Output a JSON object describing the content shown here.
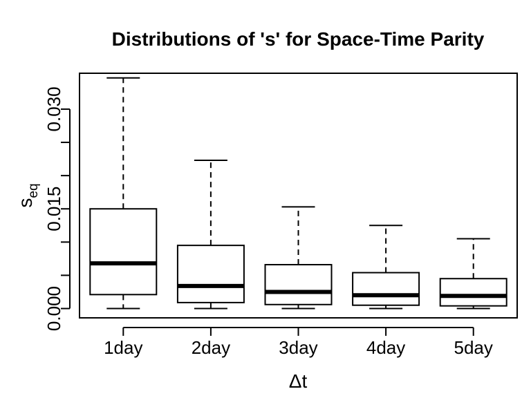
{
  "chart_data": {
    "type": "boxplot",
    "title": "Distributions of 's' for Space-Time Parity",
    "xlabel": "Δt",
    "ylabel_base": "s",
    "ylabel_sub": "eq",
    "categories": [
      "1day",
      "2day",
      "3day",
      "4day",
      "5day"
    ],
    "yticks": [
      "0.000",
      "0.015",
      "0.030"
    ],
    "ytick_values": [
      0.0,
      0.015,
      0.03
    ],
    "ylim": [
      -0.0014,
      0.0354
    ],
    "boxes": [
      {
        "category": "1day",
        "min": 0.0,
        "q1": 0.0021,
        "median": 0.0068,
        "q3": 0.015,
        "max": 0.0347
      },
      {
        "category": "2day",
        "min": 0.0,
        "q1": 0.0009,
        "median": 0.0034,
        "q3": 0.0095,
        "max": 0.0223
      },
      {
        "category": "3day",
        "min": 0.0,
        "q1": 0.0006,
        "median": 0.0025,
        "q3": 0.0066,
        "max": 0.0153
      },
      {
        "category": "4day",
        "min": 0.0,
        "q1": 0.0005,
        "median": 0.002,
        "q3": 0.0054,
        "max": 0.0125
      },
      {
        "category": "5day",
        "min": 0.0,
        "q1": 0.0004,
        "median": 0.0019,
        "q3": 0.0045,
        "max": 0.0105
      }
    ],
    "grid": false,
    "legend": "none"
  }
}
